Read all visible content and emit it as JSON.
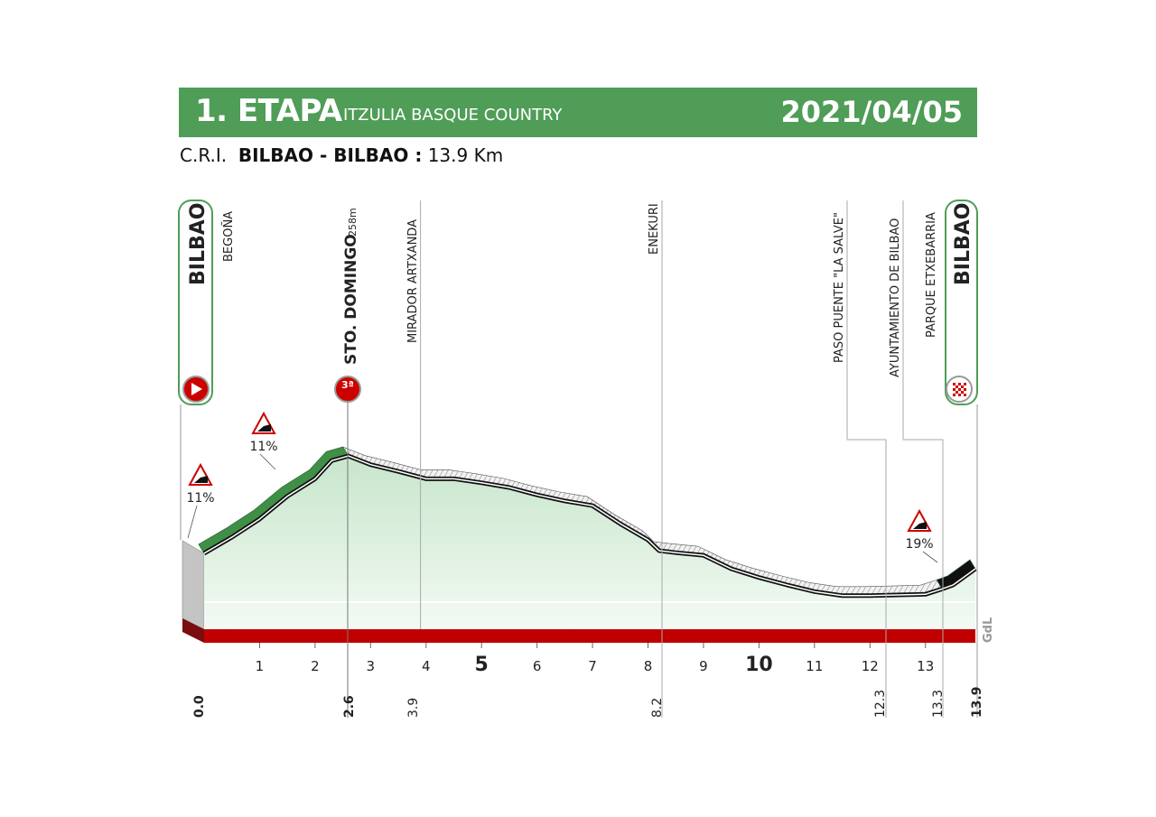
{
  "header": {
    "stage": "1. ETAPA",
    "race": "ITZULIA BASQUE COUNTRY",
    "date": "2021/04/05",
    "type": "C.R.I.",
    "route": "BILBAO - BILBAO :",
    "distance": "13.9 Km"
  },
  "colors": {
    "header": "#4f9d57",
    "profile_fill": "#d8eedb",
    "climb": "#3f8f46",
    "road": "#111111",
    "base_bar": "#c00000"
  },
  "chart_data": {
    "type": "area",
    "title": "",
    "xlabel": "",
    "ylabel": "",
    "xlim": [
      0,
      13.9
    ],
    "x_ticks": [
      1,
      2,
      3,
      4,
      5,
      6,
      7,
      8,
      9,
      10,
      11,
      12,
      13
    ],
    "x_tick_labels": [
      "1",
      "2",
      "3",
      "4",
      "5",
      "6",
      "7",
      "8",
      "9",
      "10",
      "11",
      "12",
      "13"
    ],
    "grid": false,
    "series": [
      {
        "x": [
          0,
          0.5,
          1,
          1.5,
          2,
          2.3,
          2.6,
          3,
          3.5,
          4,
          4.5,
          5,
          5.5,
          6,
          6.5,
          7,
          7.5,
          8,
          8.2,
          8.5,
          9,
          9.5,
          10,
          10.5,
          11,
          11.5,
          12,
          12.5,
          13,
          13.3,
          13.5,
          13.9
        ],
        "y": [
          113,
          137,
          164,
          198,
          224,
          251,
          258,
          245,
          235,
          224,
          224,
          218,
          211,
          200,
          191,
          184,
          157,
          133,
          117,
          114,
          110,
          90,
          77,
          66,
          56,
          50,
          50,
          51,
          52,
          60,
          66,
          90
        ]
      }
    ],
    "waypoints": [
      {
        "name": "BILBAO",
        "km": "0.0",
        "kind": "start"
      },
      {
        "name": "BEGOÑA",
        "kind": "place"
      },
      {
        "name": "STO. DOMINGO",
        "alt": "258m",
        "km": "2.6",
        "kind": "climb",
        "category": "3ª"
      },
      {
        "name": "MIRADOR ARTXANDA",
        "km": "3.9",
        "kind": "place"
      },
      {
        "name": "ENEKURI",
        "km": "8.2",
        "kind": "place"
      },
      {
        "name": "PASO PUENTE \"LA SALVE\"",
        "km": "12.3",
        "kind": "place"
      },
      {
        "name": "AYUNTAMIENTO DE BILBAO",
        "km": "13.3",
        "kind": "place"
      },
      {
        "name": "PARQUE ETXEBARRIA",
        "kind": "place"
      },
      {
        "name": "BILBAO",
        "km": "13.9",
        "kind": "finish"
      }
    ],
    "gradients": [
      {
        "label": "11%",
        "km": 0.1
      },
      {
        "label": "11%",
        "km": 1.3
      },
      {
        "label": "19%",
        "km": 13.5
      }
    ],
    "credit": "GdL"
  }
}
